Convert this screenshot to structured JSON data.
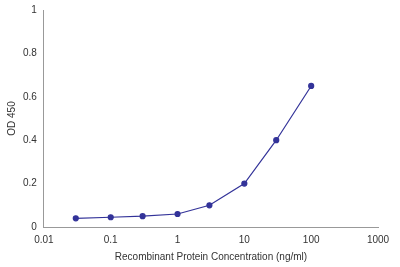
{
  "chart_data": {
    "type": "line",
    "x_label": "Recombinant Protein Concentration (ng/ml)",
    "y_label": "OD 450",
    "x": [
      0.03,
      0.1,
      0.3,
      1,
      3,
      10,
      30,
      100
    ],
    "values": [
      0.04,
      0.045,
      0.05,
      0.06,
      0.1,
      0.2,
      0.4,
      0.65
    ],
    "color": "#333399",
    "marker": "circle",
    "log": "x",
    "xlim": [
      0.01,
      1000
    ],
    "xticks": [
      0.01,
      0.1,
      1,
      10,
      100,
      1000
    ],
    "ylim": [
      0,
      1
    ],
    "yticks": [
      0,
      0.2,
      0.4,
      0.6,
      0.8,
      1
    ],
    "grid": false
  }
}
